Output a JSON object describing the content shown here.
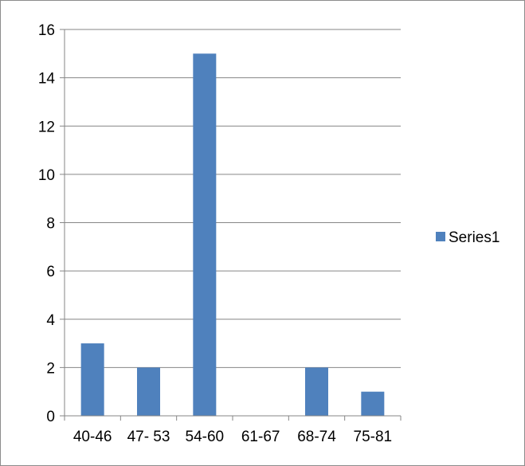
{
  "chart_data": {
    "type": "bar",
    "categories": [
      "40-46",
      "47- 53",
      "54-60",
      "61-67",
      "68-74",
      "75-81"
    ],
    "series": [
      {
        "name": "Series1",
        "values": [
          3,
          2,
          15,
          0,
          2,
          1
        ],
        "color": "#4f81bd"
      }
    ],
    "yticks": [
      "0",
      "2",
      "4",
      "6",
      "8",
      "10",
      "12",
      "14",
      "16"
    ],
    "ylim": [
      0,
      16
    ],
    "grid": true,
    "legend": "right",
    "title": "",
    "xlabel": "",
    "ylabel": ""
  }
}
